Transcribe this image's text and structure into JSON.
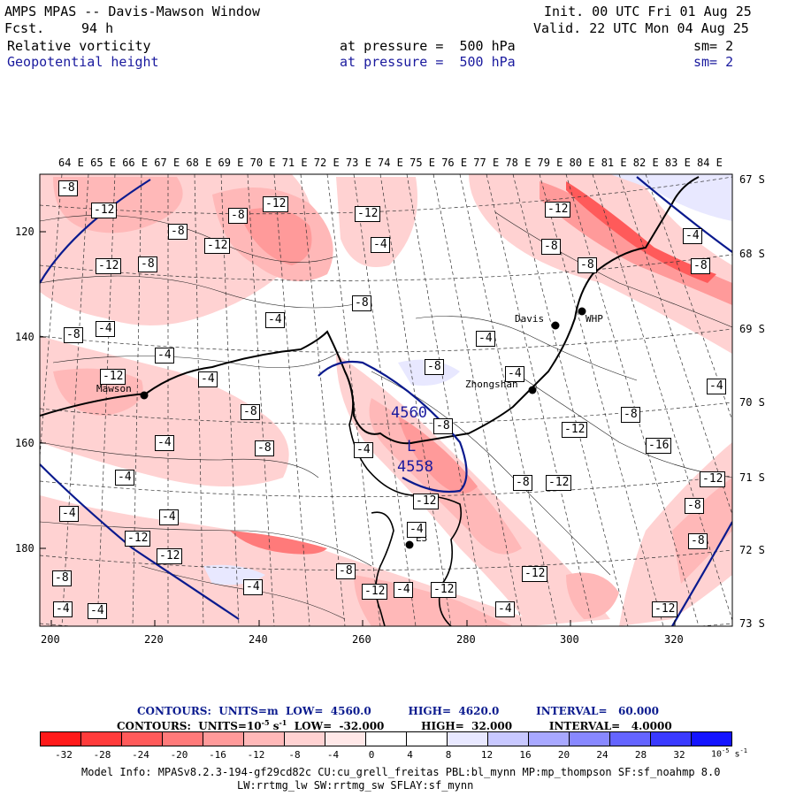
{
  "header": {
    "model": "AMPS MPAS -- Davis-Mawson Window",
    "fcst_label": "Fcst.",
    "fcst_value": "94 h",
    "init": "Init. 00 UTC Fri 01 Aug 25",
    "valid": "Valid. 22 UTC Mon 04 Aug 25",
    "field1_name": "Relative vorticity",
    "field1_level": "at pressure =  500 hPa",
    "field1_sm": "sm= 2",
    "field2_name": "Geopotential height",
    "field2_level": "at pressure =  500 hPa",
    "field2_sm": "sm= 2"
  },
  "map": {
    "top_lon_labels": [
      "64 E",
      "65 E",
      "66 E",
      "67 E",
      "68 E",
      "69 E",
      "70 E",
      "71 E",
      "72 E",
      "73 E",
      "74 E",
      "75 E",
      "76 E",
      "77 E",
      "78 E",
      "79 E",
      "80 E",
      "81 E",
      "82 E",
      "83 E",
      "84 E"
    ],
    "right_lat_labels": [
      "67 S",
      "68 S",
      "69 S",
      "70 S",
      "71 S",
      "72 S",
      "73 S"
    ],
    "left_y_labels": [
      "120",
      "140",
      "160",
      "180"
    ],
    "bottom_x_labels": [
      "200",
      "220",
      "240",
      "260",
      "280",
      "300",
      "320"
    ],
    "stations": [
      {
        "name": "Davis"
      },
      {
        "name": "WHP"
      },
      {
        "name": "Zhongshan"
      },
      {
        "name": "Mawson"
      },
      {
        "name": "E3"
      }
    ],
    "height_labels": [
      "4560",
      "L",
      "4558"
    ],
    "vort_labels": [
      "-8",
      "-12",
      "-8",
      "-12",
      "-12",
      "-8",
      "-12",
      "-4",
      "-8",
      "-12",
      "-8",
      "-8",
      "-4",
      "-8",
      "-8",
      "-4",
      "-12",
      "-4",
      "-4",
      "-8",
      "-4",
      "-8",
      "-4",
      "-8",
      "-4",
      "-8",
      "-12",
      "-4",
      "-4",
      "-8",
      "-12",
      "-16",
      "-12",
      "-8",
      "-12",
      "-8",
      "-4",
      "-4",
      "-4",
      "-4",
      "-12",
      "-12",
      "-8",
      "-4",
      "-12",
      "-12",
      "-4",
      "-12",
      "-4",
      "-8",
      "-4",
      "-4",
      "-4",
      "-12",
      "-12",
      "-8",
      "-8"
    ]
  },
  "contours": {
    "line1": "CONTOURS:  UNITS=m  LOW=  4560.0          HIGH=  4620.0          INTERVAL=   60.000",
    "line2_prefix": "CONTOURS:  UNITS=10",
    "line2_exp": "-5",
    "line2_mid": " s",
    "line2_exp2": "-1",
    "line2_rest": "  LOW=  -32.000          HIGH=  32.000          INTERVAL=   4.0000"
  },
  "colorbar": {
    "labels": [
      "-32",
      "-28",
      "-24",
      "-20",
      "-16",
      "-12",
      "-8",
      "-4",
      "0",
      "4",
      "8",
      "12",
      "16",
      "20",
      "24",
      "28",
      "32"
    ],
    "unit": "10",
    "unit_exp": "-5",
    "unit_s": " s",
    "unit_s_exp": "-1",
    "colors": [
      "#ff1a1a",
      "#ff3b3b",
      "#ff5a5a",
      "#ff7a7a",
      "#ff9a9a",
      "#ffb8b8",
      "#ffd2d2",
      "#ffe8e8",
      "#ffffff",
      "#ffffff",
      "#e8e8ff",
      "#c8c8ff",
      "#a8a8ff",
      "#8888ff",
      "#6464ff",
      "#3a3aff",
      "#1414ff"
    ]
  },
  "model_info": {
    "line1": "Model Info: MPASv8.2.3-194-gf29cd82c CU:cu_grell_freitas PBL:bl_mynn MP:mp_thompson SF:sf_noahmp 8.0",
    "line2": "LW:rrtmg_lw SW:rrtmg_sw SFLAY:sf_mynn"
  }
}
